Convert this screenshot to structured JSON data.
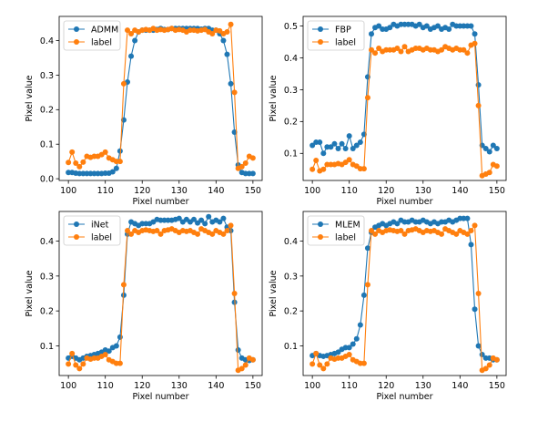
{
  "chart_data": [
    {
      "type": "line",
      "title": "",
      "xlabel": "Pixel number",
      "ylabel": "Pixel value",
      "xlim": [
        97.5,
        152.5
      ],
      "ylim": [
        -0.005,
        0.47
      ],
      "xticks": [
        100,
        110,
        120,
        130,
        140,
        150
      ],
      "xtick_labels": [
        "100",
        "110",
        "120",
        "130",
        "140",
        "150"
      ],
      "yticks": [
        0.0,
        0.1,
        0.2,
        0.3,
        0.4
      ],
      "ytick_labels": [
        "0.0",
        "0.1",
        "0.2",
        "0.3",
        "0.4"
      ],
      "legend_position": "top-left",
      "x": [
        100,
        101,
        102,
        103,
        104,
        105,
        106,
        107,
        108,
        109,
        110,
        111,
        112,
        113,
        114,
        115,
        116,
        117,
        118,
        119,
        120,
        121,
        122,
        123,
        124,
        125,
        126,
        127,
        128,
        129,
        130,
        131,
        132,
        133,
        134,
        135,
        136,
        137,
        138,
        139,
        140,
        141,
        142,
        143,
        144,
        145,
        146,
        147,
        148,
        149,
        150
      ],
      "series": [
        {
          "name": "ADMM",
          "color": "#1f77b4",
          "values": [
            0.018,
            0.018,
            0.016,
            0.015,
            0.015,
            0.015,
            0.015,
            0.015,
            0.015,
            0.015,
            0.016,
            0.016,
            0.02,
            0.03,
            0.08,
            0.17,
            0.28,
            0.355,
            0.4,
            0.425,
            0.43,
            0.43,
            0.43,
            0.43,
            0.432,
            0.435,
            0.432,
            0.432,
            0.435,
            0.435,
            0.435,
            0.435,
            0.435,
            0.435,
            0.435,
            0.435,
            0.433,
            0.435,
            0.435,
            0.43,
            0.43,
            0.42,
            0.4,
            0.36,
            0.275,
            0.135,
            0.04,
            0.018,
            0.015,
            0.015,
            0.015
          ]
        },
        {
          "name": "label",
          "color": "#ff7f0e",
          "values": [
            0.047,
            0.077,
            0.045,
            0.035,
            0.048,
            0.065,
            0.062,
            0.065,
            0.065,
            0.07,
            0.077,
            0.06,
            0.055,
            0.05,
            0.05,
            0.275,
            0.43,
            0.42,
            0.43,
            0.425,
            0.43,
            0.432,
            0.43,
            0.435,
            0.43,
            0.432,
            0.43,
            0.432,
            0.435,
            0.43,
            0.432,
            0.43,
            0.425,
            0.43,
            0.43,
            0.428,
            0.43,
            0.432,
            0.425,
            0.42,
            0.43,
            0.428,
            0.42,
            0.425,
            0.447,
            0.25,
            0.03,
            0.035,
            0.045,
            0.065,
            0.06
          ]
        }
      ]
    },
    {
      "type": "line",
      "title": "",
      "xlabel": "Pixel number",
      "ylabel": "Pixel value",
      "xlim": [
        97.5,
        152.5
      ],
      "ylim": [
        0.015,
        0.53
      ],
      "xticks": [
        100,
        110,
        120,
        130,
        140,
        150
      ],
      "xtick_labels": [
        "100",
        "110",
        "120",
        "130",
        "140",
        "150"
      ],
      "yticks": [
        0.1,
        0.2,
        0.3,
        0.4,
        0.5
      ],
      "ytick_labels": [
        "0.1",
        "0.2",
        "0.3",
        "0.4",
        "0.5"
      ],
      "legend_position": "top-left",
      "x": [
        100,
        101,
        102,
        103,
        104,
        105,
        106,
        107,
        108,
        109,
        110,
        111,
        112,
        113,
        114,
        115,
        116,
        117,
        118,
        119,
        120,
        121,
        122,
        123,
        124,
        125,
        126,
        127,
        128,
        129,
        130,
        131,
        132,
        133,
        134,
        135,
        136,
        137,
        138,
        139,
        140,
        141,
        142,
        143,
        144,
        145,
        146,
        147,
        148,
        149,
        150
      ],
      "series": [
        {
          "name": "FBP",
          "color": "#1f77b4",
          "values": [
            0.125,
            0.135,
            0.135,
            0.1,
            0.12,
            0.12,
            0.13,
            0.115,
            0.13,
            0.115,
            0.155,
            0.115,
            0.125,
            0.135,
            0.16,
            0.34,
            0.475,
            0.495,
            0.5,
            0.49,
            0.49,
            0.495,
            0.505,
            0.5,
            0.505,
            0.505,
            0.505,
            0.505,
            0.5,
            0.505,
            0.495,
            0.5,
            0.49,
            0.495,
            0.5,
            0.49,
            0.495,
            0.49,
            0.505,
            0.5,
            0.5,
            0.5,
            0.5,
            0.5,
            0.475,
            0.315,
            0.125,
            0.115,
            0.105,
            0.125,
            0.115
          ]
        },
        {
          "name": "label",
          "color": "#ff7f0e",
          "values": [
            0.05,
            0.078,
            0.045,
            0.05,
            0.065,
            0.065,
            0.065,
            0.068,
            0.065,
            0.072,
            0.08,
            0.065,
            0.06,
            0.052,
            0.052,
            0.275,
            0.425,
            0.415,
            0.43,
            0.42,
            0.425,
            0.425,
            0.425,
            0.43,
            0.42,
            0.435,
            0.42,
            0.425,
            0.43,
            0.43,
            0.425,
            0.43,
            0.425,
            0.425,
            0.42,
            0.425,
            0.435,
            0.43,
            0.425,
            0.43,
            0.425,
            0.425,
            0.415,
            0.44,
            0.445,
            0.25,
            0.03,
            0.035,
            0.04,
            0.065,
            0.06
          ]
        }
      ]
    },
    {
      "type": "line",
      "title": "",
      "xlabel": "Pixel number",
      "ylabel": "Pixel value",
      "xlim": [
        97.5,
        152.5
      ],
      "ylim": [
        0.015,
        0.485
      ],
      "xticks": [
        100,
        110,
        120,
        130,
        140,
        150
      ],
      "xtick_labels": [
        "100",
        "110",
        "120",
        "130",
        "140",
        "150"
      ],
      "yticks": [
        0.1,
        0.2,
        0.3,
        0.4
      ],
      "ytick_labels": [
        "0.1",
        "0.2",
        "0.3",
        "0.4"
      ],
      "legend_position": "top-left",
      "x": [
        100,
        101,
        102,
        103,
        104,
        105,
        106,
        107,
        108,
        109,
        110,
        111,
        112,
        113,
        114,
        115,
        116,
        117,
        118,
        119,
        120,
        121,
        122,
        123,
        124,
        125,
        126,
        127,
        128,
        129,
        130,
        131,
        132,
        133,
        134,
        135,
        136,
        137,
        138,
        139,
        140,
        141,
        142,
        143,
        144,
        145,
        146,
        147,
        148,
        149,
        150
      ],
      "series": [
        {
          "name": "iNet",
          "color": "#1f77b4",
          "values": [
            0.065,
            0.07,
            0.065,
            0.06,
            0.065,
            0.07,
            0.072,
            0.075,
            0.078,
            0.082,
            0.088,
            0.085,
            0.095,
            0.1,
            0.125,
            0.245,
            0.42,
            0.455,
            0.45,
            0.445,
            0.45,
            0.45,
            0.45,
            0.455,
            0.462,
            0.46,
            0.46,
            0.46,
            0.46,
            0.462,
            0.465,
            0.455,
            0.462,
            0.455,
            0.462,
            0.452,
            0.46,
            0.45,
            0.47,
            0.455,
            0.46,
            0.455,
            0.465,
            0.44,
            0.43,
            0.225,
            0.088,
            0.065,
            0.06,
            0.058,
            0.06
          ]
        },
        {
          "name": "label",
          "color": "#ff7f0e",
          "values": [
            0.048,
            0.078,
            0.045,
            0.035,
            0.048,
            0.065,
            0.062,
            0.065,
            0.065,
            0.07,
            0.075,
            0.06,
            0.055,
            0.05,
            0.05,
            0.275,
            0.43,
            0.42,
            0.43,
            0.425,
            0.43,
            0.432,
            0.43,
            0.428,
            0.43,
            0.42,
            0.43,
            0.432,
            0.435,
            0.43,
            0.425,
            0.43,
            0.428,
            0.43,
            0.425,
            0.42,
            0.435,
            0.43,
            0.425,
            0.42,
            0.43,
            0.425,
            0.42,
            0.43,
            0.445,
            0.25,
            0.03,
            0.035,
            0.045,
            0.065,
            0.06
          ]
        }
      ]
    },
    {
      "type": "line",
      "title": "",
      "xlabel": "Pixel number",
      "ylabel": "Pixel value",
      "xlim": [
        97.5,
        152.5
      ],
      "ylim": [
        0.015,
        0.485
      ],
      "xticks": [
        100,
        110,
        120,
        130,
        140,
        150
      ],
      "xtick_labels": [
        "100",
        "110",
        "120",
        "130",
        "140",
        "150"
      ],
      "yticks": [
        0.1,
        0.2,
        0.3,
        0.4
      ],
      "ytick_labels": [
        "0.1",
        "0.2",
        "0.3",
        "0.4"
      ],
      "legend_position": "top-left",
      "x": [
        100,
        101,
        102,
        103,
        104,
        105,
        106,
        107,
        108,
        109,
        110,
        111,
        112,
        113,
        114,
        115,
        116,
        117,
        118,
        119,
        120,
        121,
        122,
        123,
        124,
        125,
        126,
        127,
        128,
        129,
        130,
        131,
        132,
        133,
        134,
        135,
        136,
        137,
        138,
        139,
        140,
        141,
        142,
        143,
        144,
        145,
        146,
        147,
        148,
        149,
        150
      ],
      "series": [
        {
          "name": "MLEM",
          "color": "#1f77b4",
          "values": [
            0.072,
            0.078,
            0.072,
            0.07,
            0.072,
            0.075,
            0.078,
            0.082,
            0.09,
            0.095,
            0.095,
            0.105,
            0.12,
            0.16,
            0.245,
            0.38,
            0.425,
            0.44,
            0.445,
            0.45,
            0.445,
            0.45,
            0.455,
            0.45,
            0.46,
            0.455,
            0.455,
            0.46,
            0.455,
            0.455,
            0.46,
            0.455,
            0.45,
            0.455,
            0.45,
            0.455,
            0.455,
            0.46,
            0.455,
            0.46,
            0.465,
            0.465,
            0.465,
            0.39,
            0.205,
            0.1,
            0.075,
            0.065,
            0.065,
            0.06,
            0.06
          ]
        },
        {
          "name": "label",
          "color": "#ff7f0e",
          "values": [
            0.048,
            0.078,
            0.045,
            0.035,
            0.048,
            0.065,
            0.062,
            0.065,
            0.065,
            0.07,
            0.075,
            0.06,
            0.055,
            0.05,
            0.05,
            0.275,
            0.43,
            0.42,
            0.43,
            0.425,
            0.43,
            0.432,
            0.43,
            0.428,
            0.43,
            0.42,
            0.43,
            0.432,
            0.435,
            0.43,
            0.425,
            0.43,
            0.428,
            0.43,
            0.425,
            0.42,
            0.435,
            0.43,
            0.425,
            0.42,
            0.43,
            0.425,
            0.42,
            0.43,
            0.445,
            0.25,
            0.03,
            0.035,
            0.045,
            0.065,
            0.06
          ]
        }
      ]
    }
  ]
}
